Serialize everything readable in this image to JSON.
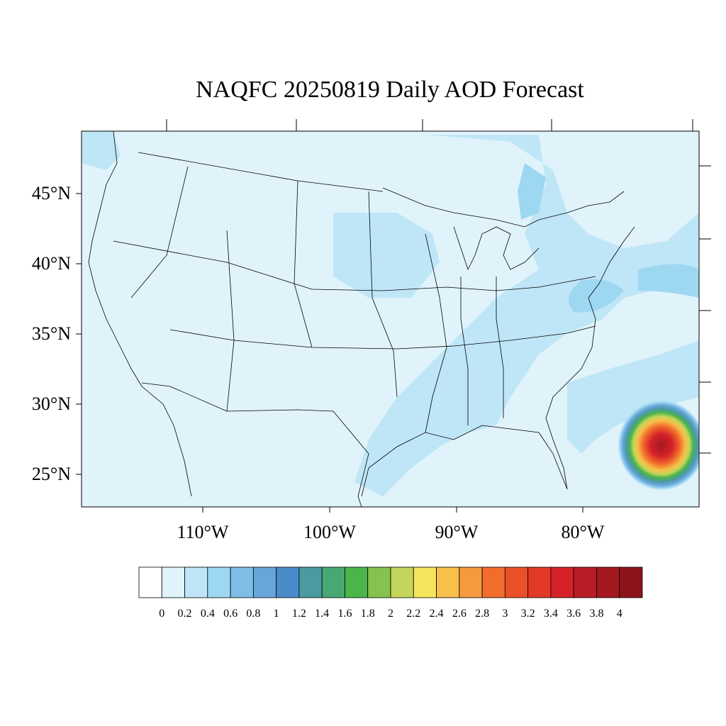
{
  "title": "NAQFC 20250819 Daily AOD Forecast",
  "lat_labels": [
    "45°N",
    "40°N",
    "35°N",
    "30°N",
    "25°N"
  ],
  "lon_labels": [
    "110°W",
    "100°W",
    "90°W",
    "80°W"
  ],
  "colorbar": {
    "labels": [
      "0",
      "0.2",
      "0.4",
      "0.6",
      "0.8",
      "1",
      "1.2",
      "1.4",
      "1.6",
      "1.8",
      "2",
      "2.2",
      "2.4",
      "2.6",
      "2.8",
      "3",
      "3.2",
      "3.4",
      "3.6",
      "3.8",
      "4"
    ],
    "colors": [
      "#ffffff",
      "#e0f3fb",
      "#bfe6f7",
      "#9ed7f2",
      "#7fbde6",
      "#66a6db",
      "#4a8bca",
      "#4a9aa0",
      "#47a873",
      "#4bb54a",
      "#86c24e",
      "#c3d55a",
      "#f5e55d",
      "#f7c04a",
      "#f59a3e",
      "#f26c2c",
      "#ea5029",
      "#e23a26",
      "#d52229",
      "#b81c25",
      "#a3181f",
      "#8c141a"
    ]
  },
  "colors": {
    "background_aod": "#e0f3fb",
    "plume_light": "#bfe6f7",
    "plume_mid": "#9ed7f2"
  }
}
